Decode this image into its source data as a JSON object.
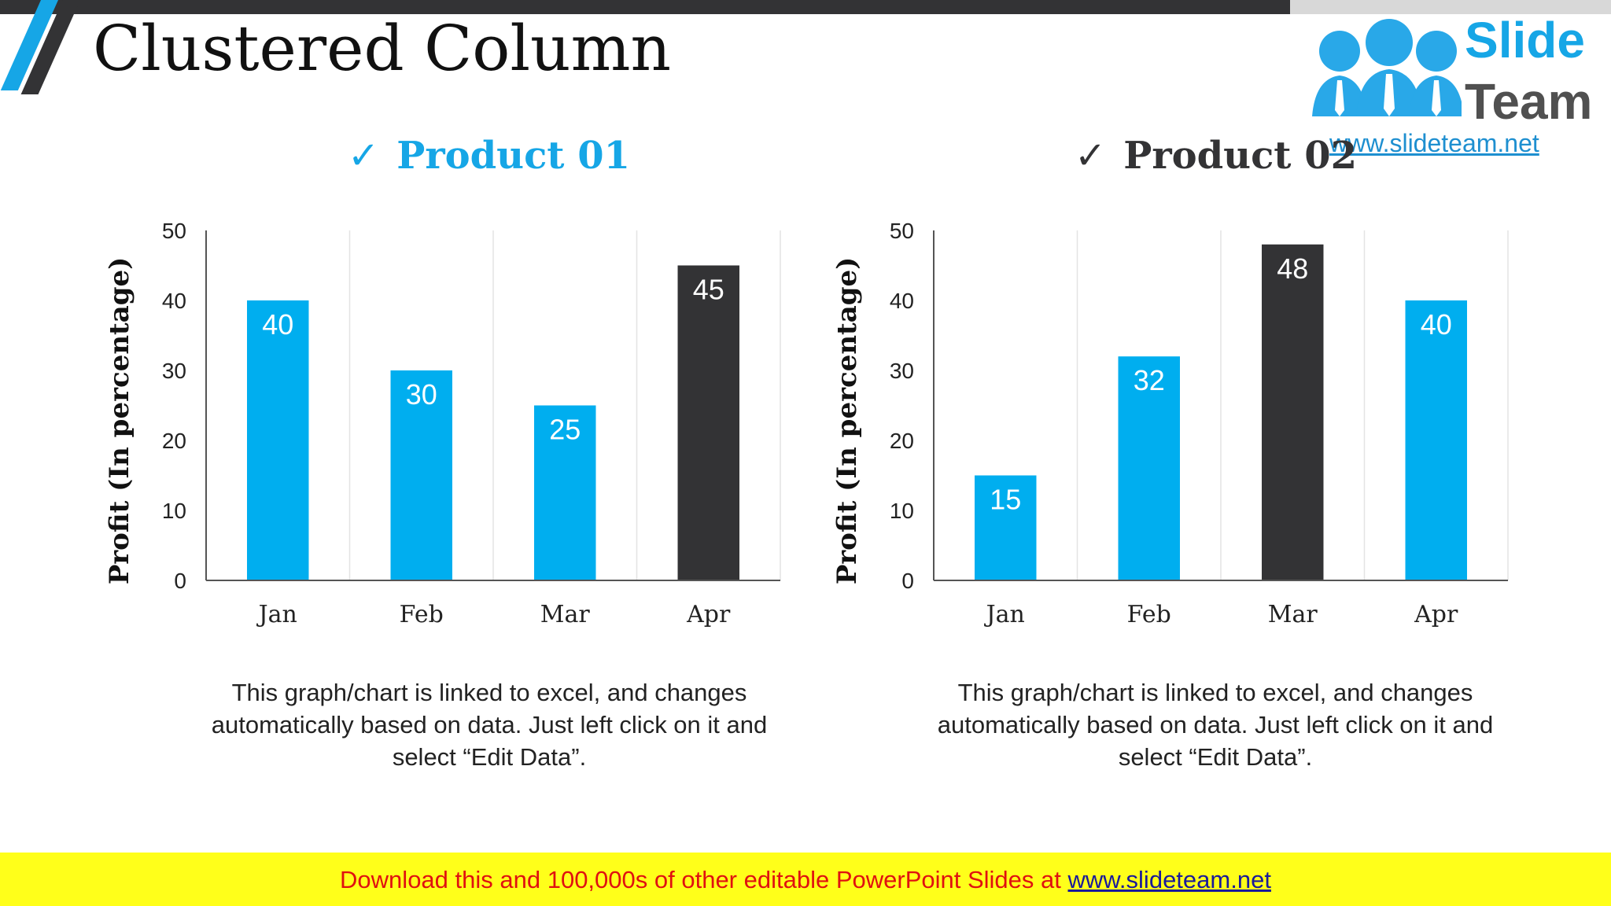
{
  "slide": {
    "title": "Clustered Column",
    "accent_color": "#00aeef",
    "dark_color": "#333335"
  },
  "logo": {
    "line1": "Slide",
    "line2": "Team",
    "url": "www.slideteam.net"
  },
  "check_mark": "✓",
  "chart_data": [
    {
      "type": "bar",
      "title": "Product 01",
      "title_color": "#16a6e6",
      "categories": [
        "Jan",
        "Feb",
        "Mar",
        "Apr"
      ],
      "values": [
        40,
        30,
        25,
        45
      ],
      "bar_colors": [
        "#00aeef",
        "#00aeef",
        "#00aeef",
        "#333335"
      ],
      "ylabel": "Profit  (In percentage)",
      "ylim": [
        0,
        50
      ],
      "yticks": [
        0,
        10,
        20,
        30,
        40,
        50
      ],
      "grid": "vertical",
      "data_labels": true
    },
    {
      "type": "bar",
      "title": "Product 02",
      "title_color": "#333335",
      "categories": [
        "Jan",
        "Feb",
        "Mar",
        "Apr"
      ],
      "values": [
        15,
        32,
        48,
        40
      ],
      "bar_colors": [
        "#00aeef",
        "#00aeef",
        "#333335",
        "#00aeef"
      ],
      "ylabel": "Profit  (In percentage)",
      "ylim": [
        0,
        50
      ],
      "yticks": [
        0,
        10,
        20,
        30,
        40,
        50
      ],
      "grid": "vertical",
      "data_labels": true
    }
  ],
  "captions": [
    "This graph/chart is linked to excel, and changes automatically based on data. Just left click on it and select “Edit Data”.",
    "This graph/chart is linked to excel, and changes automatically based on data. Just left click on it and select “Edit Data”."
  ],
  "banner": {
    "text": "Download this and 100,000s of other editable PowerPoint Slides at ",
    "link": "www.slideteam.net"
  }
}
